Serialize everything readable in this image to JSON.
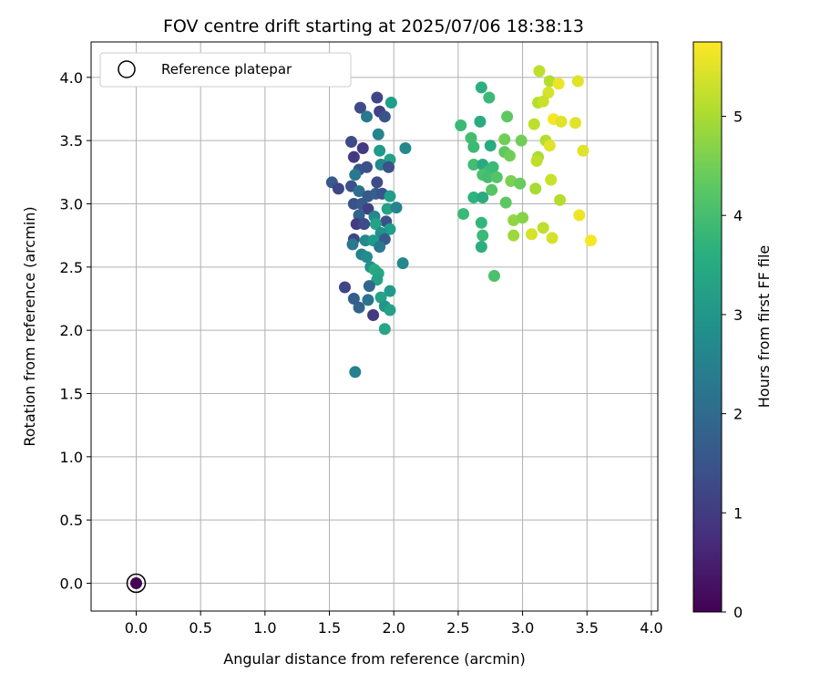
{
  "chart_data": {
    "type": "scatter",
    "title": "FOV centre drift starting at 2025/07/06 18:38:13",
    "xlabel": "Angular distance from reference (arcmin)",
    "ylabel": "Rotation from reference (arcmin)",
    "xlim": [
      -0.35,
      4.05
    ],
    "ylim": [
      -0.22,
      4.28
    ],
    "xticks": [
      0.0,
      0.5,
      1.0,
      1.5,
      2.0,
      2.5,
      3.0,
      3.5,
      4.0
    ],
    "yticks": [
      0.0,
      0.5,
      1.0,
      1.5,
      2.0,
      2.5,
      3.0,
      3.5,
      4.0
    ],
    "tick_labels_x": [
      "0.0",
      "0.5",
      "1.0",
      "1.5",
      "2.0",
      "2.5",
      "3.0",
      "3.5",
      "4.0"
    ],
    "tick_labels_y": [
      "0.0",
      "0.5",
      "1.0",
      "1.5",
      "2.0",
      "2.5",
      "3.0",
      "3.5",
      "4.0"
    ],
    "grid": true,
    "legend": {
      "placement": "top-left",
      "entries": [
        "Reference platepar"
      ]
    },
    "reference_point": {
      "x": 0.0,
      "y": 0.0,
      "t": 0.0
    },
    "colorbar": {
      "label": "Hours from first FF file",
      "range": [
        0,
        5.75
      ],
      "ticks": [
        0,
        1,
        2,
        3,
        4,
        5
      ],
      "tick_labels": [
        "0",
        "1",
        "2",
        "3",
        "4",
        "5"
      ],
      "colormap": "viridis"
    },
    "points": [
      {
        "x": 1.87,
        "y": 3.84,
        "t": 1.2
      },
      {
        "x": 1.74,
        "y": 3.76,
        "t": 1.3
      },
      {
        "x": 1.89,
        "y": 3.73,
        "t": 1.1
      },
      {
        "x": 1.93,
        "y": 3.69,
        "t": 1.5
      },
      {
        "x": 1.79,
        "y": 3.69,
        "t": 2.3
      },
      {
        "x": 1.98,
        "y": 3.8,
        "t": 3.2
      },
      {
        "x": 1.88,
        "y": 3.55,
        "t": 2.6
      },
      {
        "x": 1.67,
        "y": 3.49,
        "t": 1.3
      },
      {
        "x": 1.76,
        "y": 3.44,
        "t": 1.0
      },
      {
        "x": 1.89,
        "y": 3.42,
        "t": 3.1
      },
      {
        "x": 2.09,
        "y": 3.44,
        "t": 2.7
      },
      {
        "x": 1.69,
        "y": 3.37,
        "t": 1.0
      },
      {
        "x": 1.97,
        "y": 3.35,
        "t": 3.3
      },
      {
        "x": 1.9,
        "y": 3.31,
        "t": 2.7
      },
      {
        "x": 1.96,
        "y": 3.29,
        "t": 1.4
      },
      {
        "x": 1.79,
        "y": 3.29,
        "t": 1.4
      },
      {
        "x": 1.73,
        "y": 3.27,
        "t": 1.5
      },
      {
        "x": 1.7,
        "y": 3.23,
        "t": 2.3
      },
      {
        "x": 1.52,
        "y": 3.17,
        "t": 1.6
      },
      {
        "x": 1.57,
        "y": 3.12,
        "t": 1.2
      },
      {
        "x": 1.67,
        "y": 3.14,
        "t": 1.4
      },
      {
        "x": 1.87,
        "y": 3.17,
        "t": 1.3
      },
      {
        "x": 1.73,
        "y": 3.1,
        "t": 2.1
      },
      {
        "x": 1.8,
        "y": 3.06,
        "t": 1.6
      },
      {
        "x": 1.86,
        "y": 3.08,
        "t": 1.7
      },
      {
        "x": 1.91,
        "y": 3.08,
        "t": 1.5
      },
      {
        "x": 1.97,
        "y": 3.06,
        "t": 3.2
      },
      {
        "x": 1.69,
        "y": 3.0,
        "t": 1.4
      },
      {
        "x": 1.75,
        "y": 3.0,
        "t": 1.6
      },
      {
        "x": 1.8,
        "y": 2.96,
        "t": 1.1
      },
      {
        "x": 1.95,
        "y": 2.96,
        "t": 3.3
      },
      {
        "x": 2.02,
        "y": 2.97,
        "t": 2.6
      },
      {
        "x": 1.73,
        "y": 2.91,
        "t": 1.8
      },
      {
        "x": 1.85,
        "y": 2.9,
        "t": 2.7
      },
      {
        "x": 1.94,
        "y": 2.86,
        "t": 1.4
      },
      {
        "x": 1.71,
        "y": 2.84,
        "t": 1.0
      },
      {
        "x": 1.77,
        "y": 2.84,
        "t": 1.3
      },
      {
        "x": 1.86,
        "y": 2.84,
        "t": 3.3
      },
      {
        "x": 1.97,
        "y": 2.8,
        "t": 3.2
      },
      {
        "x": 1.9,
        "y": 2.77,
        "t": 2.9
      },
      {
        "x": 1.69,
        "y": 2.72,
        "t": 1.2
      },
      {
        "x": 1.78,
        "y": 2.71,
        "t": 2.7
      },
      {
        "x": 1.84,
        "y": 2.71,
        "t": 3.1
      },
      {
        "x": 1.93,
        "y": 2.72,
        "t": 1.6
      },
      {
        "x": 1.68,
        "y": 2.68,
        "t": 2.3
      },
      {
        "x": 1.89,
        "y": 2.66,
        "t": 2.3
      },
      {
        "x": 1.75,
        "y": 2.6,
        "t": 2.5
      },
      {
        "x": 1.79,
        "y": 2.58,
        "t": 2.8
      },
      {
        "x": 2.07,
        "y": 2.53,
        "t": 2.7
      },
      {
        "x": 1.82,
        "y": 2.5,
        "t": 2.9
      },
      {
        "x": 1.85,
        "y": 2.48,
        "t": 3.5
      },
      {
        "x": 1.88,
        "y": 2.45,
        "t": 3.4
      },
      {
        "x": 1.87,
        "y": 2.4,
        "t": 3.3
      },
      {
        "x": 1.62,
        "y": 2.34,
        "t": 1.2
      },
      {
        "x": 1.81,
        "y": 2.35,
        "t": 1.9
      },
      {
        "x": 1.97,
        "y": 2.31,
        "t": 3.1
      },
      {
        "x": 1.69,
        "y": 2.25,
        "t": 1.7
      },
      {
        "x": 1.8,
        "y": 2.24,
        "t": 2.2
      },
      {
        "x": 1.9,
        "y": 2.26,
        "t": 3.3
      },
      {
        "x": 1.93,
        "y": 2.19,
        "t": 3.0
      },
      {
        "x": 1.73,
        "y": 2.18,
        "t": 1.8
      },
      {
        "x": 1.97,
        "y": 2.16,
        "t": 3.3
      },
      {
        "x": 1.84,
        "y": 2.12,
        "t": 1.0
      },
      {
        "x": 1.93,
        "y": 2.01,
        "t": 3.4
      },
      {
        "x": 1.7,
        "y": 1.67,
        "t": 2.5
      },
      {
        "x": 2.68,
        "y": 3.92,
        "t": 3.6
      },
      {
        "x": 2.74,
        "y": 3.84,
        "t": 3.9
      },
      {
        "x": 2.88,
        "y": 3.69,
        "t": 4.3
      },
      {
        "x": 2.67,
        "y": 3.65,
        "t": 3.5
      },
      {
        "x": 2.52,
        "y": 3.62,
        "t": 3.9
      },
      {
        "x": 2.6,
        "y": 3.52,
        "t": 4.0
      },
      {
        "x": 2.86,
        "y": 3.51,
        "t": 4.5
      },
      {
        "x": 2.99,
        "y": 3.5,
        "t": 4.5
      },
      {
        "x": 2.62,
        "y": 3.45,
        "t": 3.9
      },
      {
        "x": 2.75,
        "y": 3.46,
        "t": 3.5
      },
      {
        "x": 2.86,
        "y": 3.41,
        "t": 4.3
      },
      {
        "x": 2.9,
        "y": 3.38,
        "t": 4.5
      },
      {
        "x": 2.62,
        "y": 3.31,
        "t": 4.0
      },
      {
        "x": 2.69,
        "y": 3.31,
        "t": 3.5
      },
      {
        "x": 2.74,
        "y": 3.26,
        "t": 4.0
      },
      {
        "x": 2.77,
        "y": 3.29,
        "t": 3.9
      },
      {
        "x": 2.69,
        "y": 3.23,
        "t": 4.1
      },
      {
        "x": 2.73,
        "y": 3.21,
        "t": 4.0
      },
      {
        "x": 2.8,
        "y": 3.21,
        "t": 4.2
      },
      {
        "x": 2.91,
        "y": 3.18,
        "t": 4.6
      },
      {
        "x": 2.98,
        "y": 3.16,
        "t": 4.4
      },
      {
        "x": 2.76,
        "y": 3.11,
        "t": 4.2
      },
      {
        "x": 2.62,
        "y": 3.05,
        "t": 3.7
      },
      {
        "x": 2.69,
        "y": 3.05,
        "t": 3.5
      },
      {
        "x": 2.87,
        "y": 3.01,
        "t": 4.3
      },
      {
        "x": 2.54,
        "y": 2.92,
        "t": 3.9
      },
      {
        "x": 2.93,
        "y": 2.87,
        "t": 4.8
      },
      {
        "x": 3.0,
        "y": 2.89,
        "t": 4.7
      },
      {
        "x": 2.68,
        "y": 2.85,
        "t": 3.8
      },
      {
        "x": 2.69,
        "y": 2.75,
        "t": 3.9
      },
      {
        "x": 2.93,
        "y": 2.75,
        "t": 4.9
      },
      {
        "x": 2.68,
        "y": 2.66,
        "t": 3.6
      },
      {
        "x": 2.78,
        "y": 2.43,
        "t": 4.1
      },
      {
        "x": 3.13,
        "y": 4.05,
        "t": 5.2
      },
      {
        "x": 3.21,
        "y": 3.97,
        "t": 5.1
      },
      {
        "x": 3.28,
        "y": 3.95,
        "t": 5.6
      },
      {
        "x": 3.43,
        "y": 3.97,
        "t": 5.5
      },
      {
        "x": 3.2,
        "y": 3.88,
        "t": 5.4
      },
      {
        "x": 3.12,
        "y": 3.8,
        "t": 5.1
      },
      {
        "x": 3.16,
        "y": 3.81,
        "t": 5.3
      },
      {
        "x": 3.24,
        "y": 3.67,
        "t": 5.7
      },
      {
        "x": 3.3,
        "y": 3.65,
        "t": 5.5
      },
      {
        "x": 3.41,
        "y": 3.64,
        "t": 5.5
      },
      {
        "x": 3.09,
        "y": 3.63,
        "t": 5.2
      },
      {
        "x": 3.18,
        "y": 3.5,
        "t": 5.1
      },
      {
        "x": 3.21,
        "y": 3.46,
        "t": 5.5
      },
      {
        "x": 3.47,
        "y": 3.42,
        "t": 5.5
      },
      {
        "x": 3.12,
        "y": 3.37,
        "t": 5.0
      },
      {
        "x": 3.11,
        "y": 3.34,
        "t": 5.2
      },
      {
        "x": 3.22,
        "y": 3.19,
        "t": 5.3
      },
      {
        "x": 3.1,
        "y": 3.12,
        "t": 5.0
      },
      {
        "x": 3.29,
        "y": 3.03,
        "t": 5.1
      },
      {
        "x": 3.44,
        "y": 2.91,
        "t": 5.6
      },
      {
        "x": 3.16,
        "y": 2.81,
        "t": 5.2
      },
      {
        "x": 3.07,
        "y": 2.76,
        "t": 5.4
      },
      {
        "x": 3.23,
        "y": 2.73,
        "t": 5.4
      },
      {
        "x": 3.53,
        "y": 2.71,
        "t": 5.7
      }
    ]
  }
}
